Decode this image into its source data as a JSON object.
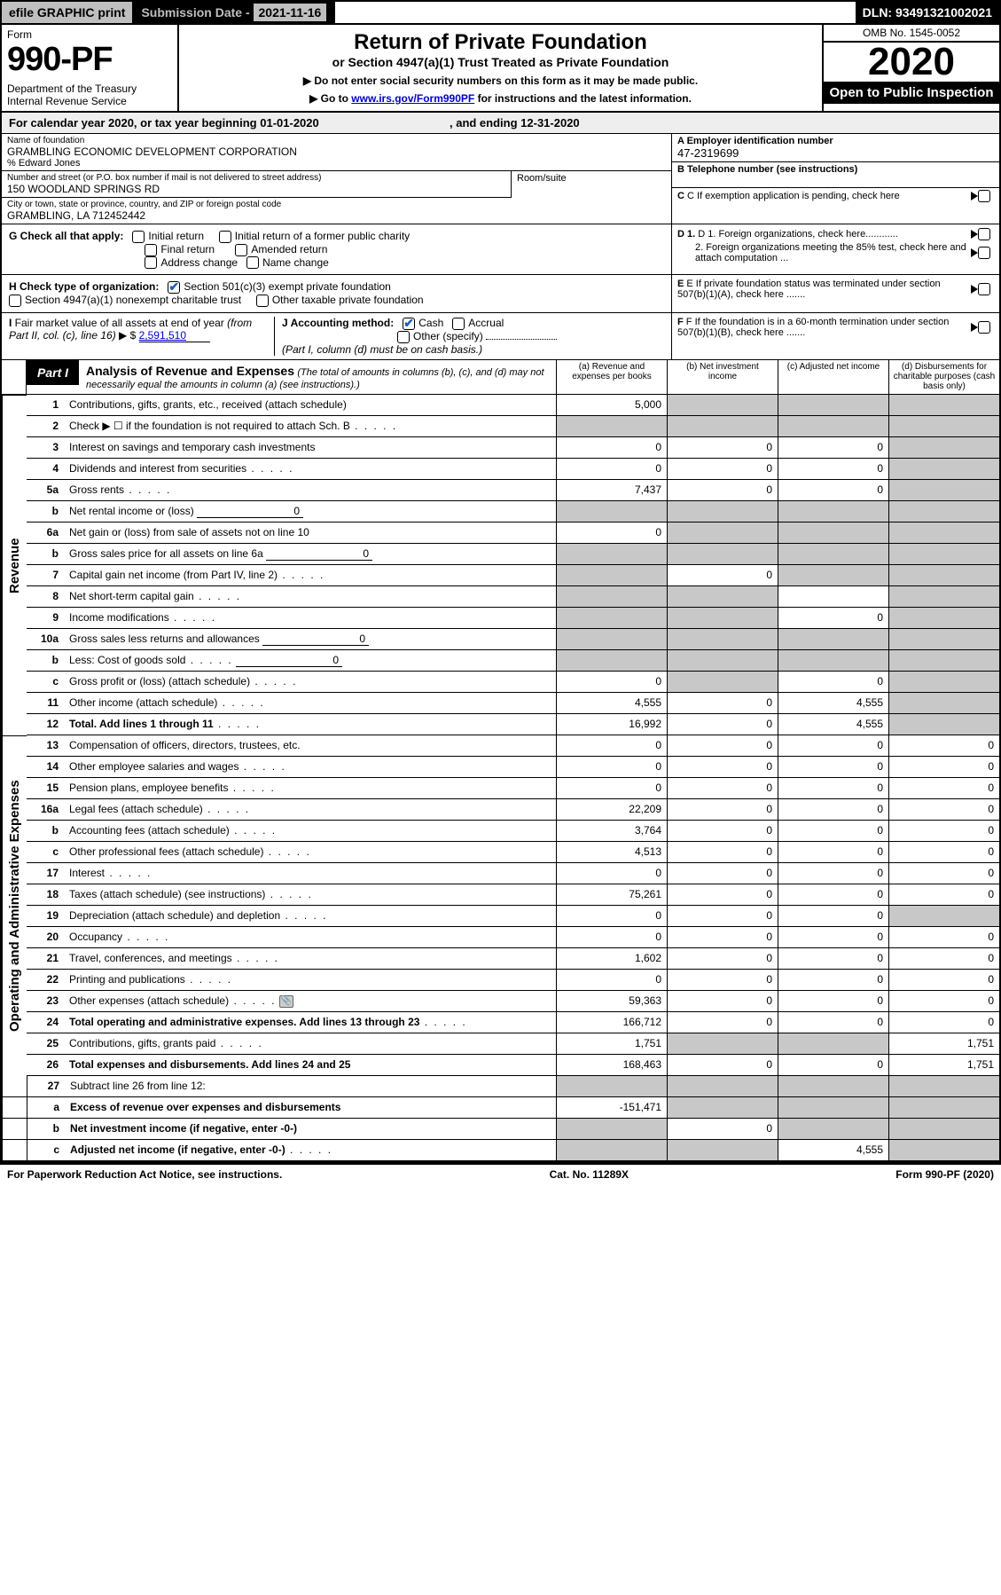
{
  "topbar": {
    "efile": "efile GRAPHIC print",
    "subdate_label": "Submission Date - ",
    "subdate": "2021-11-16",
    "dln": "DLN: 93491321002021"
  },
  "header": {
    "form_word": "Form",
    "form_num": "990-PF",
    "dept": "Department of the Treasury\nInternal Revenue Service",
    "title": "Return of Private Foundation",
    "subtitle": "or Section 4947(a)(1) Trust Treated as Private Foundation",
    "note1": "▶ Do not enter social security numbers on this form as it may be made public.",
    "note2_pre": "▶ Go to ",
    "note2_link": "www.irs.gov/Form990PF",
    "note2_post": " for instructions and the latest information.",
    "omb": "OMB No. 1545-0052",
    "year": "2020",
    "otp": "Open to Public Inspection"
  },
  "calendar": {
    "text_pre": "For calendar year 2020, or tax year beginning ",
    "begin": "01-01-2020",
    "mid": " , and ending ",
    "end": "12-31-2020"
  },
  "info": {
    "name_lbl": "Name of foundation",
    "name": "GRAMBLING ECONOMIC DEVELOPMENT CORPORATION",
    "care_of": "% Edward Jones",
    "street_lbl": "Number and street (or P.O. box number if mail is not delivered to street address)",
    "street": "150 WOODLAND SPRINGS RD",
    "room_lbl": "Room/suite",
    "city_lbl": "City or town, state or province, country, and ZIP or foreign postal code",
    "city": "GRAMBLING, LA  712452442",
    "ein_lbl": "A Employer identification number",
    "ein": "47-2319699",
    "phone_lbl": "B Telephone number (see instructions)",
    "c_lbl": "C If exemption application is pending, check here",
    "d1": "D 1. Foreign organizations, check here............",
    "d2": "2. Foreign organizations meeting the 85% test, check here and attach computation ...",
    "e": "E If private foundation status was terminated under section 507(b)(1)(A), check here .......",
    "f": "F If the foundation is in a 60-month termination under section 507(b)(1)(B), check here .......",
    "g_lbl": "G Check all that apply:",
    "g_opts": [
      "Initial return",
      "Initial return of a former public charity",
      "Final return",
      "Amended return",
      "Address change",
      "Name change"
    ],
    "h_lbl": "H Check type of organization:",
    "h_opts": [
      "Section 501(c)(3) exempt private foundation",
      "Section 4947(a)(1) nonexempt charitable trust",
      "Other taxable private foundation"
    ],
    "i_lbl": "I Fair market value of all assets at end of year (from Part II, col. (c), line 16) ▶ $ ",
    "i_val": "2,591,510",
    "j_lbl": "J Accounting method:",
    "j_opts": [
      "Cash",
      "Accrual",
      "Other (specify)"
    ],
    "j_note": "(Part I, column (d) must be on cash basis.)"
  },
  "part1": {
    "badge": "Part I",
    "title": "Analysis of Revenue and Expenses",
    "note": "(The total of amounts in columns (b), (c), and (d) may not necessarily equal the amounts in column (a) (see instructions).)",
    "col_a": "(a) Revenue and expenses per books",
    "col_b": "(b) Net investment income",
    "col_c": "(c) Adjusted net income",
    "col_d": "(d) Disbursements for charitable purposes (cash basis only)"
  },
  "sidelabels": {
    "revenue": "Revenue",
    "expenses": "Operating and Administrative Expenses"
  },
  "rows": {
    "r1": {
      "n": "1",
      "d": "Contributions, gifts, grants, etc., received (attach schedule)",
      "a": "5,000",
      "b": "",
      "c": "",
      "dd": "",
      "shade_b": true,
      "shade_c": true,
      "shade_d": true
    },
    "r2": {
      "n": "2",
      "d": "Check ▶ ☐ if the foundation is not required to attach Sch. B",
      "dots": true,
      "a": "",
      "b": "",
      "c": "",
      "dd": "",
      "shade_a": true,
      "shade_b": true,
      "shade_c": true,
      "shade_d": true
    },
    "r3": {
      "n": "3",
      "d": "Interest on savings and temporary cash investments",
      "a": "0",
      "b": "0",
      "c": "0",
      "dd": "",
      "shade_d": true
    },
    "r4": {
      "n": "4",
      "d": "Dividends and interest from securities",
      "dots": true,
      "a": "0",
      "b": "0",
      "c": "0",
      "dd": "",
      "shade_d": true
    },
    "r5a": {
      "n": "5a",
      "d": "Gross rents",
      "dots": true,
      "a": "7,437",
      "b": "0",
      "c": "0",
      "dd": "",
      "shade_d": true
    },
    "r5b": {
      "n": "b",
      "d": "Net rental income or (loss)",
      "inline": "0",
      "a": "",
      "b": "",
      "c": "",
      "dd": "",
      "shade_a": true,
      "shade_b": true,
      "shade_c": true,
      "shade_d": true
    },
    "r6a": {
      "n": "6a",
      "d": "Net gain or (loss) from sale of assets not on line 10",
      "a": "0",
      "b": "",
      "c": "",
      "dd": "",
      "shade_b": true,
      "shade_c": true,
      "shade_d": true
    },
    "r6b": {
      "n": "b",
      "d": "Gross sales price for all assets on line 6a",
      "inline": "0",
      "a": "",
      "b": "",
      "c": "",
      "dd": "",
      "shade_a": true,
      "shade_b": true,
      "shade_c": true,
      "shade_d": true
    },
    "r7": {
      "n": "7",
      "d": "Capital gain net income (from Part IV, line 2)",
      "dots": true,
      "a": "",
      "b": "0",
      "c": "",
      "dd": "",
      "shade_a": true,
      "shade_c": true,
      "shade_d": true
    },
    "r8": {
      "n": "8",
      "d": "Net short-term capital gain",
      "dots": true,
      "a": "",
      "b": "",
      "c": "",
      "dd": "",
      "shade_a": true,
      "shade_b": true,
      "shade_d": true
    },
    "r9": {
      "n": "9",
      "d": "Income modifications",
      "dots": true,
      "a": "",
      "b": "",
      "c": "0",
      "dd": "",
      "shade_a": true,
      "shade_b": true,
      "shade_d": true
    },
    "r10a": {
      "n": "10a",
      "d": "Gross sales less returns and allowances",
      "inline": "0",
      "a": "",
      "b": "",
      "c": "",
      "dd": "",
      "shade_a": true,
      "shade_b": true,
      "shade_c": true,
      "shade_d": true
    },
    "r10b": {
      "n": "b",
      "d": "Less: Cost of goods sold",
      "dots": true,
      "inline": "0",
      "a": "",
      "b": "",
      "c": "",
      "dd": "",
      "shade_a": true,
      "shade_b": true,
      "shade_c": true,
      "shade_d": true
    },
    "r10c": {
      "n": "c",
      "d": "Gross profit or (loss) (attach schedule)",
      "dots": true,
      "a": "0",
      "b": "",
      "c": "0",
      "dd": "",
      "shade_b": true,
      "shade_d": true
    },
    "r11": {
      "n": "11",
      "d": "Other income (attach schedule)",
      "dots": true,
      "a": "4,555",
      "b": "0",
      "c": "4,555",
      "dd": "",
      "shade_d": true
    },
    "r12": {
      "n": "12",
      "d": "Total. Add lines 1 through 11",
      "bold": true,
      "dots": true,
      "a": "16,992",
      "b": "0",
      "c": "4,555",
      "dd": "",
      "shade_d": true
    },
    "r13": {
      "n": "13",
      "d": "Compensation of officers, directors, trustees, etc.",
      "a": "0",
      "b": "0",
      "c": "0",
      "dd": "0"
    },
    "r14": {
      "n": "14",
      "d": "Other employee salaries and wages",
      "dots": true,
      "a": "0",
      "b": "0",
      "c": "0",
      "dd": "0"
    },
    "r15": {
      "n": "15",
      "d": "Pension plans, employee benefits",
      "dots": true,
      "a": "0",
      "b": "0",
      "c": "0",
      "dd": "0"
    },
    "r16a": {
      "n": "16a",
      "d": "Legal fees (attach schedule)",
      "dots": true,
      "a": "22,209",
      "b": "0",
      "c": "0",
      "dd": "0"
    },
    "r16b": {
      "n": "b",
      "d": "Accounting fees (attach schedule)",
      "dots": true,
      "a": "3,764",
      "b": "0",
      "c": "0",
      "dd": "0"
    },
    "r16c": {
      "n": "c",
      "d": "Other professional fees (attach schedule)",
      "dots": true,
      "a": "4,513",
      "b": "0",
      "c": "0",
      "dd": "0"
    },
    "r17": {
      "n": "17",
      "d": "Interest",
      "dots": true,
      "a": "0",
      "b": "0",
      "c": "0",
      "dd": "0"
    },
    "r18": {
      "n": "18",
      "d": "Taxes (attach schedule) (see instructions)",
      "dots": true,
      "a": "75,261",
      "b": "0",
      "c": "0",
      "dd": "0"
    },
    "r19": {
      "n": "19",
      "d": "Depreciation (attach schedule) and depletion",
      "dots": true,
      "a": "0",
      "b": "0",
      "c": "0",
      "dd": "",
      "shade_d": true
    },
    "r20": {
      "n": "20",
      "d": "Occupancy",
      "dots": true,
      "a": "0",
      "b": "0",
      "c": "0",
      "dd": "0"
    },
    "r21": {
      "n": "21",
      "d": "Travel, conferences, and meetings",
      "dots": true,
      "a": "1,602",
      "b": "0",
      "c": "0",
      "dd": "0"
    },
    "r22": {
      "n": "22",
      "d": "Printing and publications",
      "dots": true,
      "a": "0",
      "b": "0",
      "c": "0",
      "dd": "0"
    },
    "r23": {
      "n": "23",
      "d": "Other expenses (attach schedule)",
      "dots": true,
      "icon": true,
      "a": "59,363",
      "b": "0",
      "c": "0",
      "dd": "0"
    },
    "r24": {
      "n": "24",
      "d": "Total operating and administrative expenses. Add lines 13 through 23",
      "bold": true,
      "dots": true,
      "a": "166,712",
      "b": "0",
      "c": "0",
      "dd": "0"
    },
    "r25": {
      "n": "25",
      "d": "Contributions, gifts, grants paid",
      "dots": true,
      "a": "1,751",
      "b": "",
      "c": "",
      "dd": "1,751",
      "shade_b": true,
      "shade_c": true
    },
    "r26": {
      "n": "26",
      "d": "Total expenses and disbursements. Add lines 24 and 25",
      "bold": true,
      "a": "168,463",
      "b": "0",
      "c": "0",
      "dd": "1,751"
    },
    "r27": {
      "n": "27",
      "d": "Subtract line 26 from line 12:",
      "a": "",
      "b": "",
      "c": "",
      "dd": "",
      "shade_a": true,
      "shade_b": true,
      "shade_c": true,
      "shade_d": true
    },
    "r27a": {
      "n": "a",
      "d": "Excess of revenue over expenses and disbursements",
      "bold": true,
      "a": "-151,471",
      "b": "",
      "c": "",
      "dd": "",
      "shade_b": true,
      "shade_c": true,
      "shade_d": true
    },
    "r27b": {
      "n": "b",
      "d": "Net investment income (if negative, enter -0-)",
      "bold": true,
      "a": "",
      "b": "0",
      "c": "",
      "dd": "",
      "shade_a": true,
      "shade_c": true,
      "shade_d": true
    },
    "r27c": {
      "n": "c",
      "d": "Adjusted net income (if negative, enter -0-)",
      "bold": true,
      "dots": true,
      "a": "",
      "b": "",
      "c": "4,555",
      "dd": "",
      "shade_a": true,
      "shade_b": true,
      "shade_d": true
    }
  },
  "footer": {
    "left": "For Paperwork Reduction Act Notice, see instructions.",
    "mid": "Cat. No. 11289X",
    "right": "Form 990-PF (2020)"
  }
}
